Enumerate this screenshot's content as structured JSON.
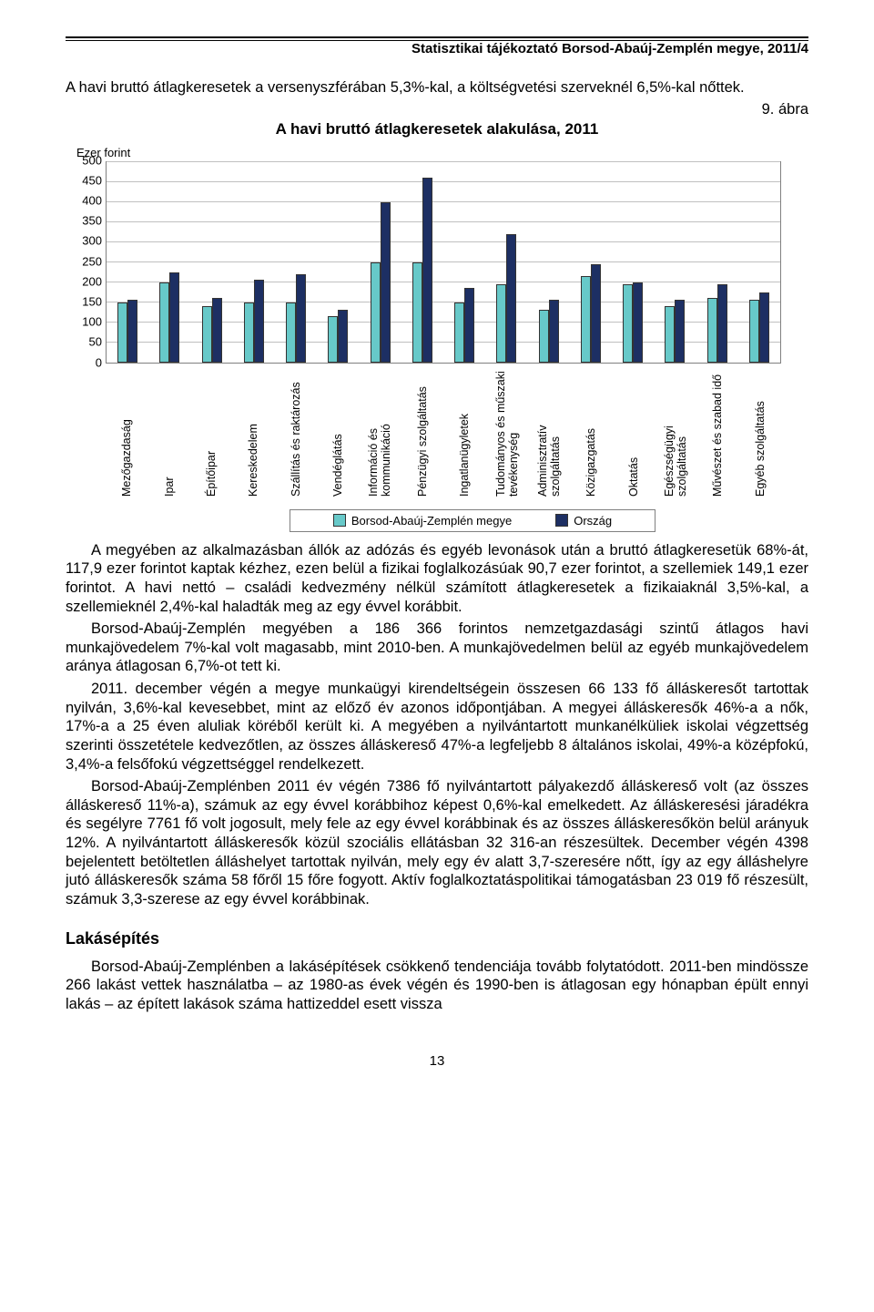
{
  "doc_header": "Statisztikai tájékoztató Borsod-Abaúj-Zemplén megye, 2011/4",
  "intro": "A havi bruttó átlagkeresetek a versenyszférában 5,3%-kal, a költségvetési szerveknél 6,5%-kal nőttek.",
  "fig_label": "9. ábra",
  "chart": {
    "type": "grouped-bar",
    "title": "A havi bruttó átlagkeresetek alakulása, 2011",
    "y_label": "Ezer forint",
    "ylim": [
      0,
      500
    ],
    "ytick_step": 50,
    "yticks": [
      "500",
      "450",
      "400",
      "350",
      "300",
      "250",
      "200",
      "150",
      "100",
      "50",
      "0"
    ],
    "grid_color": "#c0c0c0",
    "border_color": "#808080",
    "series": [
      {
        "name": "Borsod-Abaúj-Zemplén megye",
        "color": "#67c9c9"
      },
      {
        "name": "Ország",
        "color": "#1d2f63"
      }
    ],
    "categories": [
      {
        "label": "Mezőgazdaság",
        "megye": 150,
        "orszag": 155
      },
      {
        "label": "Ipar",
        "megye": 200,
        "orszag": 225
      },
      {
        "label": "Építőipar",
        "megye": 140,
        "orszag": 160
      },
      {
        "label": "Kereskedelem",
        "megye": 150,
        "orszag": 205
      },
      {
        "label": "Szállítás és raktározás",
        "megye": 150,
        "orszag": 220
      },
      {
        "label": "Vendéglátás",
        "megye": 115,
        "orszag": 130
      },
      {
        "label": "Információ és kommunikáció",
        "megye": 250,
        "orszag": 400
      },
      {
        "label": "Pénzügyi szolgáltatás",
        "megye": 250,
        "orszag": 460
      },
      {
        "label": "Ingatlanügyletek",
        "megye": 150,
        "orszag": 185
      },
      {
        "label": "Tudományos és műszaki tevékenység",
        "megye": 195,
        "orszag": 320
      },
      {
        "label": "Adminisztratív szolgáltatás",
        "megye": 130,
        "orszag": 155
      },
      {
        "label": "Közigazgatás",
        "megye": 215,
        "orszag": 245
      },
      {
        "label": "Oktatás",
        "megye": 195,
        "orszag": 200
      },
      {
        "label": "Egészségügyi szolgáltatás",
        "megye": 140,
        "orszag": 155
      },
      {
        "label": "Művészet és szabad idő",
        "megye": 160,
        "orszag": 195
      },
      {
        "label": "Egyéb szolgáltatás",
        "megye": 155,
        "orszag": 175
      }
    ],
    "legend": [
      "Borsod-Abaúj-Zemplén megye",
      "Ország"
    ]
  },
  "body": [
    "A megyében az alkalmazásban állók az adózás és egyéb levonások után a bruttó átlagkeresetük 68%-át, 117,9 ezer forintot kaptak kézhez, ezen belül a fizikai foglalkozásúak 90,7 ezer forintot, a szellemiek 149,1 ezer forintot. A havi nettó – családi kedvezmény nélkül számított átlagkeresetek a fizikaiaknál 3,5%-kal, a szellemieknél 2,4%-kal haladták meg az egy évvel korábbit.",
    "Borsod-Abaúj-Zemplén megyében a 186 366 forintos nemzetgazdasági szintű átlagos havi munkajövedelem 7%-kal volt magasabb, mint 2010-ben. A munkajövedelmen belül az egyéb munkajövedelem aránya átlagosan 6,7%-ot tett ki.",
    "2011. december végén a megye munkaügyi kirendeltségein összesen 66 133 fő álláskeresőt tartottak nyilván, 3,6%-kal kevesebbet, mint az előző év azonos időpontjában. A megyei álláskeresők 46%-a a nők, 17%-a a 25 éven aluliak köréből került ki. A megyében a nyilvántartott munkanélküliek iskolai végzettség szerinti összetétele kedvezőtlen, az összes álláskereső 47%-a legfeljebb 8 általános iskolai, 49%-a középfokú, 3,4%-a felsőfokú végzettséggel rendelkezett.",
    "Borsod-Abaúj-Zemplénben 2011 év végén 7386 fő nyilvántartott pályakezdő álláskereső volt (az összes álláskereső 11%-a), számuk az egy évvel korábbihoz képest 0,6%-kal emelkedett. Az álláskeresési járadékra és segélyre 7761 fő volt jogosult, mely fele az egy évvel korábbinak és az összes álláskeresőkön belül arányuk 12%. A nyilvántartott álláskeresők közül szociális ellátásban 32 316-an részesültek. December végén 4398 bejelentett betöltetlen álláshelyet tartottak nyilván, mely egy év alatt 3,7-szeresére nőtt, így az egy álláshelyre jutó álláskeresők száma 58 főről 15 főre fogyott. Aktív foglalkoztatáspolitikai támogatásban 23 019 fő részesült, számuk 3,3-szerese az egy évvel korábbinak."
  ],
  "section_title": "Lakásépítés",
  "section_body": "Borsod-Abaúj-Zemplénben a lakásépítések csökkenő tendenciája tovább folytatódott. 2011-ben mindössze 266 lakást vettek használatba – az 1980-as évek végén és 1990-ben is átlagosan egy hónapban épült ennyi lakás – az épített lakások száma hattizeddel esett vissza",
  "page_number": "13"
}
